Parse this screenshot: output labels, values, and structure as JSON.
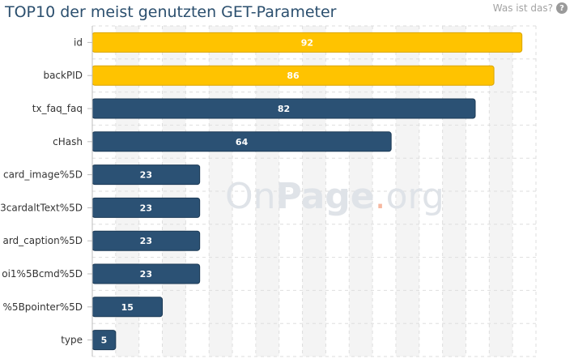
{
  "header": {
    "title": "TOP10 der meist genutzten GET-Parameter",
    "help_label": "Was ist das?",
    "help_icon": "question-circle-icon"
  },
  "watermark": {
    "text_on": "On",
    "text_page": "Page",
    "text_dot": ".",
    "text_org": "org"
  },
  "colors": {
    "highlight": "#ffc300",
    "highlight_border": "#d9a400",
    "default": "#2b5174",
    "default_border": "#1c3a56",
    "grid_band": "#f4f4f4",
    "grid_line": "#dedede"
  },
  "chart_data": {
    "type": "bar",
    "orientation": "horizontal",
    "title": "TOP10 der meist genutzten GET-Parameter",
    "categories": [
      "id",
      "backPID",
      "tx_faq_faq",
      "cHash",
      "card_image%5D",
      "3cardaltText%5D",
      "ard_caption%5D",
      "oi1%5Bcmd%5D",
      "%5Bpointer%5D",
      "type"
    ],
    "values": [
      92,
      86,
      82,
      64,
      23,
      23,
      23,
      23,
      15,
      5
    ],
    "highlighted": [
      true,
      true,
      false,
      false,
      false,
      false,
      false,
      false,
      false,
      false
    ],
    "xlim": [
      0,
      95
    ],
    "grid": true
  }
}
